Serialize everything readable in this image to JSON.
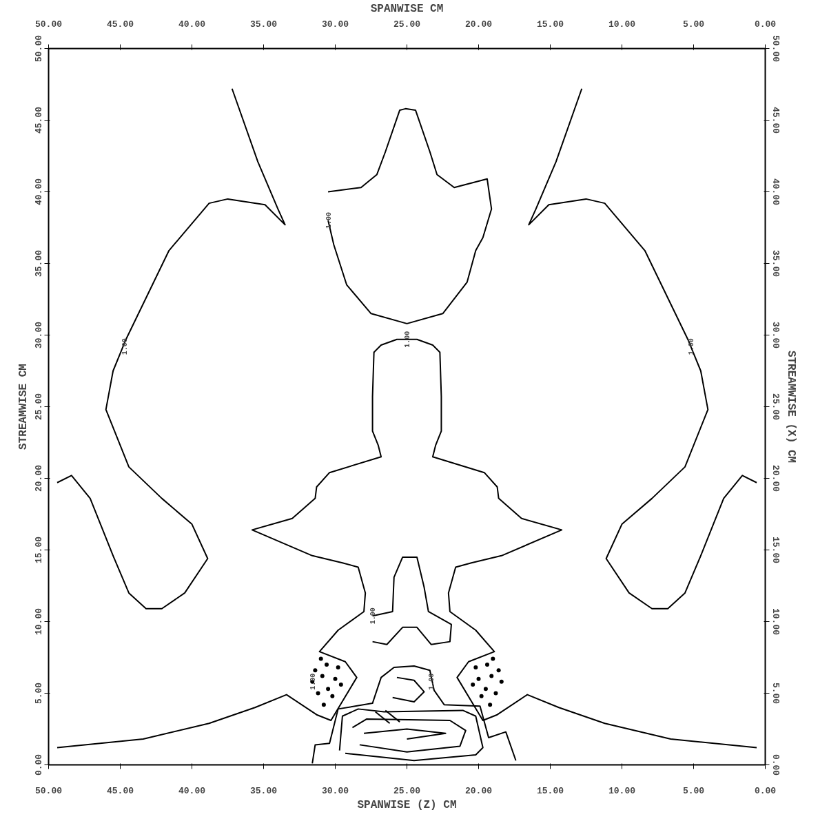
{
  "chart_data": {
    "type": "line",
    "xlabel": "SPANWISE (Z) CM",
    "x2label": "SPANWISE CM",
    "ylabel": "STREAMWISE CM",
    "y2label": "STREAMWISE (X) CM",
    "xlim": [
      50,
      0
    ],
    "ylim": [
      0,
      50
    ],
    "x2lim": [
      50,
      0
    ],
    "y2lim": [
      0,
      50
    ],
    "xticks": [
      {
        "value": 50,
        "label": "50.00"
      },
      {
        "value": 45,
        "label": "45.00"
      },
      {
        "value": 40,
        "label": "40.00"
      },
      {
        "value": 35,
        "label": "35.00"
      },
      {
        "value": 30,
        "label": "30.00"
      },
      {
        "value": 25,
        "label": "25.00"
      },
      {
        "value": 20,
        "label": "20.00"
      },
      {
        "value": 15,
        "label": "15.00"
      },
      {
        "value": 10,
        "label": "10.00"
      },
      {
        "value": 5,
        "label": "5.00"
      },
      {
        "value": 0,
        "label": "0.00"
      }
    ],
    "x2ticks": [
      {
        "value": 50,
        "label": "50.00"
      },
      {
        "value": 45,
        "label": "45.00"
      },
      {
        "value": 40,
        "label": "40.00"
      },
      {
        "value": 35,
        "label": "35.00"
      },
      {
        "value": 30,
        "label": "30.00"
      },
      {
        "value": 25,
        "label": "25.00"
      },
      {
        "value": 20,
        "label": "20.00"
      },
      {
        "value": 15,
        "label": "15.00"
      },
      {
        "value": 10,
        "label": "10.00"
      },
      {
        "value": 5,
        "label": "5.00"
      },
      {
        "value": 0,
        "label": "0.00"
      }
    ],
    "yticks": [
      {
        "value": 0,
        "label": "0.00"
      },
      {
        "value": 5,
        "label": "5.00"
      },
      {
        "value": 10,
        "label": "10.00"
      },
      {
        "value": 15,
        "label": "15.00"
      },
      {
        "value": 20,
        "label": "20.00"
      },
      {
        "value": 25,
        "label": "25.00"
      },
      {
        "value": 30,
        "label": "30.00"
      },
      {
        "value": 35,
        "label": "35.00"
      },
      {
        "value": 40,
        "label": "40.00"
      },
      {
        "value": 45,
        "label": "45.00"
      },
      {
        "value": 50,
        "label": "50.00"
      }
    ],
    "y2ticks": [
      {
        "value": 0,
        "label": "0.00"
      },
      {
        "value": 5,
        "label": "5.00"
      },
      {
        "value": 10,
        "label": "10.00"
      },
      {
        "value": 15,
        "label": "15.00"
      },
      {
        "value": 20,
        "label": "20.00"
      },
      {
        "value": 25,
        "label": "25.00"
      },
      {
        "value": 30,
        "label": "30.00"
      },
      {
        "value": 35,
        "label": "35.00"
      },
      {
        "value": 40,
        "label": "40.00"
      },
      {
        "value": 45,
        "label": "45.00"
      },
      {
        "value": 50,
        "label": "50.00"
      }
    ],
    "series": [
      {
        "color": "#000000",
        "x": [
          49.4,
          43.4,
          38.8,
          35.6,
          33.4,
          31.3,
          30.3,
          28.5,
          29.3,
          31.1,
          29.8,
          28.0,
          27.9,
          28.4,
          29.5,
          31.6,
          35.8,
          33.0,
          31.4,
          31.3,
          30.4,
          26.8,
          27.0,
          27.4,
          27.4,
          27.3,
          26.8,
          25.7,
          25.0,
          24.3,
          23.2,
          22.7,
          22.6,
          22.6,
          23.0,
          23.2,
          19.6,
          18.7,
          18.6,
          17.0,
          14.2,
          18.4,
          20.5,
          21.6,
          22.1,
          22.0,
          20.2,
          18.9,
          20.7,
          21.5,
          19.7,
          18.7,
          16.6,
          14.4,
          11.2,
          6.6,
          0.6
        ],
        "values": [
          1.2,
          1.8,
          2.9,
          4.0,
          4.9,
          3.5,
          3.1,
          6.1,
          7.2,
          7.9,
          9.4,
          10.7,
          12.0,
          13.8,
          14.1,
          14.6,
          16.4,
          17.2,
          18.6,
          19.4,
          20.4,
          21.5,
          22.3,
          23.3,
          25.7,
          28.8,
          29.3,
          29.7,
          29.7,
          29.7,
          29.3,
          28.8,
          25.7,
          23.3,
          22.3,
          21.5,
          20.4,
          19.4,
          18.6,
          17.2,
          16.4,
          14.6,
          14.1,
          13.8,
          12.0,
          10.7,
          9.4,
          7.9,
          7.2,
          6.1,
          3.1,
          3.5,
          4.9,
          4.0,
          2.9,
          1.8,
          1.2
        ]
      },
      {
        "color": "#000000",
        "x": [
          49.4,
          48.4,
          47.1,
          45.5,
          44.4,
          43.2,
          42.1,
          40.5,
          38.9,
          40.0,
          42.1,
          44.4,
          46.0,
          45.5,
          44.6,
          41.6,
          38.8,
          37.5,
          34.9,
          33.5,
          34.0,
          35.4,
          37.2
        ],
        "values": [
          19.7,
          20.2,
          18.6,
          14.6,
          12.0,
          10.9,
          10.9,
          12.0,
          14.4,
          16.8,
          18.6,
          20.8,
          24.8,
          27.5,
          29.7,
          35.9,
          39.2,
          39.5,
          39.1,
          37.7,
          38.8,
          42.1,
          47.2
        ]
      },
      {
        "color": "#000000",
        "x": [
          0.6,
          1.6,
          2.9,
          4.5,
          5.6,
          6.8,
          7.9,
          9.5,
          11.1,
          10.0,
          7.9,
          5.6,
          4.0,
          4.5,
          5.4,
          8.4,
          11.2,
          12.5,
          15.1,
          16.5,
          16.0,
          14.6,
          12.8
        ],
        "values": [
          19.7,
          20.2,
          18.6,
          14.6,
          12.0,
          10.9,
          10.9,
          12.0,
          14.4,
          16.8,
          18.6,
          20.8,
          24.8,
          27.5,
          29.7,
          35.9,
          39.2,
          39.5,
          39.1,
          37.7,
          38.8,
          42.1,
          47.2
        ]
      },
      {
        "color": "#000000",
        "x": [
          30.5,
          30.1,
          29.2,
          27.5,
          25.0,
          22.5,
          20.8,
          20.2,
          19.7,
          19.1,
          19.4,
          21.7,
          22.9,
          23.4,
          24.4,
          25.1,
          25.5,
          26.5,
          27.1,
          28.2,
          30.5
        ],
        "values": [
          38.0,
          36.3,
          33.5,
          31.5,
          30.8,
          31.5,
          33.7,
          35.9,
          36.8,
          38.8,
          40.9,
          40.3,
          41.2,
          42.8,
          45.7,
          45.8,
          45.7,
          42.8,
          41.2,
          40.3,
          40.0
        ]
      },
      {
        "color": "#000000",
        "x": [
          27.4,
          26.4,
          25.3,
          24.3,
          23.3,
          22.0,
          21.9,
          23.5,
          23.8,
          24.3,
          25.3,
          25.9,
          26.0,
          27.4
        ],
        "values": [
          8.6,
          8.4,
          9.6,
          9.6,
          8.4,
          8.6,
          9.8,
          10.7,
          12.4,
          14.5,
          14.5,
          13.1,
          10.7,
          10.4
        ]
      },
      {
        "color": "#000000",
        "x": [
          31.6,
          31.4,
          30.4,
          29.8,
          27.4,
          26.8,
          25.9,
          24.5,
          23.4,
          23.1,
          22.4,
          19.9,
          19.3,
          18.1,
          17.4
        ],
        "values": [
          0.1,
          1.4,
          1.5,
          3.9,
          4.3,
          6.1,
          6.8,
          6.9,
          6.6,
          5.2,
          4.2,
          4.1,
          1.9,
          2.3,
          0.3
        ]
      },
      {
        "color": "#000000",
        "x": [
          29.7,
          29.5,
          28.4,
          26.6,
          21.1,
          20.2,
          19.7,
          20.2,
          24.5,
          29.3
        ],
        "values": [
          1.0,
          3.4,
          3.9,
          3.7,
          3.8,
          3.4,
          1.2,
          0.7,
          0.3,
          0.8
        ]
      },
      {
        "color": "#000000",
        "x": [
          28.8,
          27.8,
          22.0,
          20.9,
          21.3,
          25.0,
          28.3
        ],
        "values": [
          2.6,
          3.2,
          3.1,
          2.4,
          1.3,
          0.9,
          1.4
        ]
      },
      {
        "color": "#000000",
        "x": [
          28.0,
          25.0,
          22.3,
          25.0
        ],
        "values": [
          2.2,
          2.5,
          2.2,
          1.8
        ]
      },
      {
        "color": "#000000",
        "x": [
          27.2,
          26.2
        ],
        "values": [
          3.7,
          2.9
        ]
      },
      {
        "color": "#000000",
        "x": [
          26.5,
          25.5
        ],
        "values": [
          3.8,
          3.0
        ]
      },
      {
        "color": "#000000",
        "x": [
          25.7,
          24.5,
          23.8,
          24.5,
          26.0
        ],
        "values": [
          6.1,
          5.9,
          5.1,
          4.4,
          4.7
        ]
      },
      {
        "type": "scatter",
        "color": "#000000",
        "x": [
          30.8,
          31.2,
          30.5,
          30.0,
          30.9,
          29.8,
          30.6,
          31.4,
          31.6,
          30.2,
          29.6,
          31.0
        ],
        "values": [
          4.2,
          5.0,
          5.3,
          6.0,
          6.2,
          6.8,
          7.0,
          6.6,
          5.8,
          4.8,
          5.6,
          7.4
        ]
      },
      {
        "type": "scatter",
        "color": "#000000",
        "x": [
          19.2,
          18.8,
          19.5,
          20.0,
          19.1,
          20.2,
          19.4,
          18.6,
          18.4,
          19.8,
          20.4,
          19.0
        ],
        "values": [
          4.2,
          5.0,
          5.3,
          6.0,
          6.2,
          6.8,
          7.0,
          6.6,
          5.8,
          4.8,
          5.6,
          7.4
        ]
      }
    ],
    "annotations": [
      {
        "text": "1.00",
        "x": 44.7,
        "y": 29.2
      },
      {
        "text": "1.00",
        "x": 5.2,
        "y": 29.2
      },
      {
        "text": "1.00",
        "x": 25.0,
        "y": 29.7
      },
      {
        "text": "1.00",
        "x": 30.5,
        "y": 38.0
      },
      {
        "text": "1.00",
        "x": 27.4,
        "y": 10.4
      },
      {
        "text": "1.00",
        "x": 31.6,
        "y": 5.8
      },
      {
        "text": "1.00",
        "x": 23.3,
        "y": 5.8
      }
    ]
  }
}
